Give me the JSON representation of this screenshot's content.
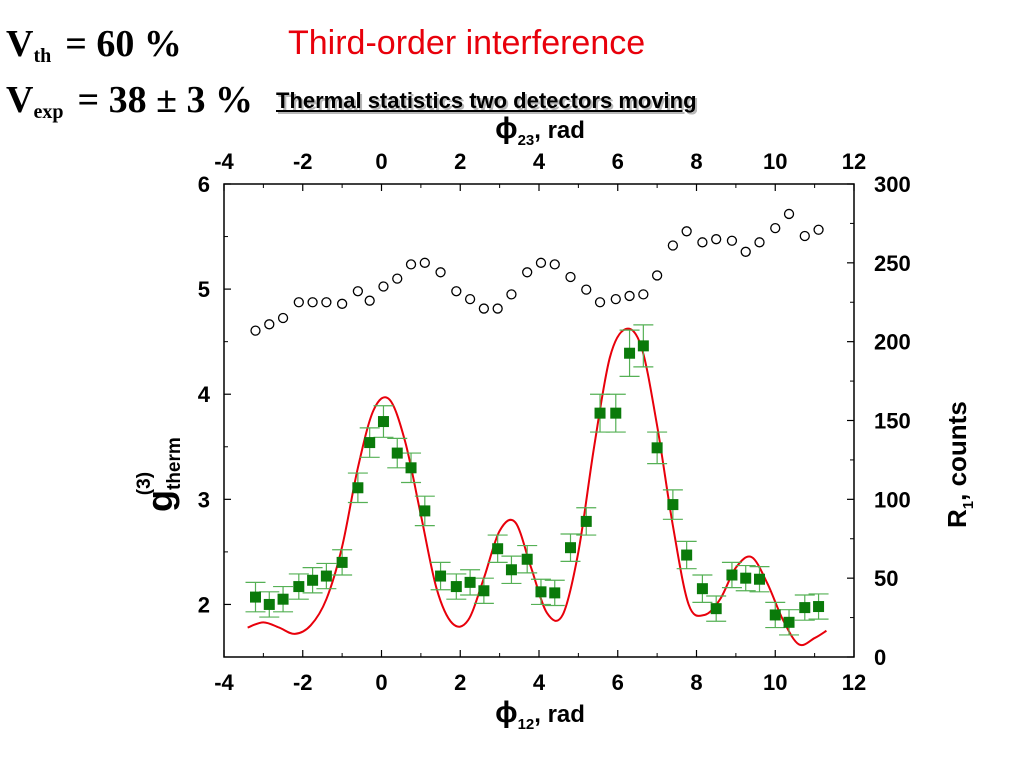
{
  "header": {
    "vth": {
      "symbol": "V",
      "subscript": "th",
      "rest": "= 60 %"
    },
    "vexp": {
      "symbol": "V",
      "subscript": "exp",
      "rest": "= 38 ± 3 %"
    },
    "title": "Third-order interference",
    "subtitle": "Thermal statistics two detectors moving"
  },
  "chart_data": {
    "type": "scatter",
    "x_bottom": {
      "label_symbol": "ϕ",
      "label_sub": "12",
      "label_rest": ", rad",
      "range": [
        -4,
        12
      ],
      "ticks": [
        "-4",
        "-2",
        "0",
        "2",
        "4",
        "6",
        "8",
        "10",
        "12"
      ]
    },
    "x_top": {
      "label_symbol": "ϕ",
      "label_sub": "23",
      "label_rest": ", rad",
      "range": [
        -4,
        12
      ],
      "ticks": [
        "-4",
        "-2",
        "0",
        "2",
        "4",
        "6",
        "8",
        "10",
        "12"
      ]
    },
    "y_left": {
      "label_main": "g",
      "label_sup": "(3)",
      "label_sub": "therm",
      "range": [
        1.5,
        6
      ],
      "ticks": [
        "2",
        "3",
        "4",
        "5",
        "6"
      ]
    },
    "y_right": {
      "label_main": "R",
      "label_sub": "1",
      "label_rest": ", counts",
      "range": [
        0,
        300
      ],
      "ticks": [
        "0",
        "50",
        "100",
        "150",
        "200",
        "250",
        "300"
      ]
    },
    "colors": {
      "g3_markers": "#0a7a0a",
      "errorbars": "#55b055",
      "fit": "#e8000b",
      "r1_markers": "#000000"
    },
    "series": [
      {
        "axis": "left",
        "marker": "filled-square",
        "x": [
          -3.2,
          -2.85,
          -2.5,
          -2.1,
          -1.75,
          -1.4,
          -1.0,
          -0.6,
          -0.3,
          0.05,
          0.4,
          0.75,
          1.1,
          1.5,
          1.9,
          2.25,
          2.6,
          2.95,
          3.3,
          3.7,
          4.05,
          4.4,
          4.8,
          5.2,
          5.55,
          5.95,
          6.3,
          6.65,
          7.0,
          7.4,
          7.75,
          8.15,
          8.5,
          8.9,
          9.25,
          9.6,
          10.0,
          10.35,
          10.75,
          11.1
        ],
        "y": [
          2.07,
          2.0,
          2.05,
          2.17,
          2.23,
          2.27,
          2.4,
          3.11,
          3.54,
          3.74,
          3.44,
          3.3,
          2.89,
          2.27,
          2.17,
          2.21,
          2.13,
          2.53,
          2.33,
          2.43,
          2.12,
          2.11,
          2.54,
          2.79,
          3.82,
          3.82,
          4.39,
          4.46,
          3.49,
          2.95,
          2.47,
          2.15,
          1.96,
          2.28,
          2.25,
          2.24,
          1.9,
          1.83,
          1.97,
          1.98
        ],
        "yerr": [
          0.14,
          0.12,
          0.12,
          0.12,
          0.12,
          0.12,
          0.12,
          0.14,
          0.14,
          0.15,
          0.14,
          0.14,
          0.14,
          0.13,
          0.12,
          0.12,
          0.12,
          0.13,
          0.13,
          0.13,
          0.12,
          0.12,
          0.13,
          0.13,
          0.18,
          0.18,
          0.22,
          0.2,
          0.15,
          0.14,
          0.13,
          0.13,
          0.12,
          0.12,
          0.12,
          0.12,
          0.12,
          0.12,
          0.12,
          0.12
        ]
      },
      {
        "axis": "left",
        "marker": "line",
        "x": [
          -3.4,
          -3.0,
          -2.6,
          -2.2,
          -1.8,
          -1.4,
          -1.0,
          -0.6,
          -0.2,
          0.2,
          0.6,
          1.0,
          1.4,
          1.8,
          2.2,
          2.6,
          3.0,
          3.4,
          3.8,
          4.2,
          4.6,
          5.0,
          5.4,
          5.8,
          6.2,
          6.6,
          7.0,
          7.4,
          7.8,
          8.2,
          8.6,
          9.0,
          9.4,
          9.8,
          10.2,
          10.6,
          11.0,
          11.3
        ],
        "y": [
          1.78,
          1.83,
          1.78,
          1.72,
          1.8,
          2.05,
          2.55,
          3.3,
          3.85,
          3.95,
          3.55,
          2.85,
          2.15,
          1.82,
          1.85,
          2.25,
          2.7,
          2.78,
          2.35,
          1.92,
          1.9,
          2.5,
          3.5,
          4.35,
          4.62,
          4.45,
          3.7,
          2.75,
          2.0,
          1.9,
          2.05,
          2.35,
          2.45,
          2.2,
          1.85,
          1.62,
          1.68,
          1.75
        ]
      },
      {
        "axis": "right",
        "marker": "open-circle",
        "x": [
          -3.2,
          -2.85,
          -2.5,
          -2.1,
          -1.75,
          -1.4,
          -1.0,
          -0.6,
          -0.3,
          0.05,
          0.4,
          0.75,
          1.1,
          1.5,
          1.9,
          2.25,
          2.6,
          2.95,
          3.3,
          3.7,
          4.05,
          4.4,
          4.8,
          5.2,
          5.55,
          5.95,
          6.3,
          6.65,
          7.0,
          7.4,
          7.75,
          8.15,
          8.5,
          8.9,
          9.25,
          9.6,
          10.0,
          10.35,
          10.75,
          11.1
        ],
        "y": [
          207,
          211,
          215,
          225,
          225,
          225,
          224,
          232,
          226,
          235,
          240,
          249,
          250,
          244,
          232,
          227,
          221,
          221,
          230,
          244,
          250,
          249,
          241,
          233,
          225,
          227,
          229,
          230,
          242,
          261,
          270,
          263,
          265,
          264,
          257,
          263,
          272,
          281,
          267,
          271
        ]
      }
    ]
  }
}
